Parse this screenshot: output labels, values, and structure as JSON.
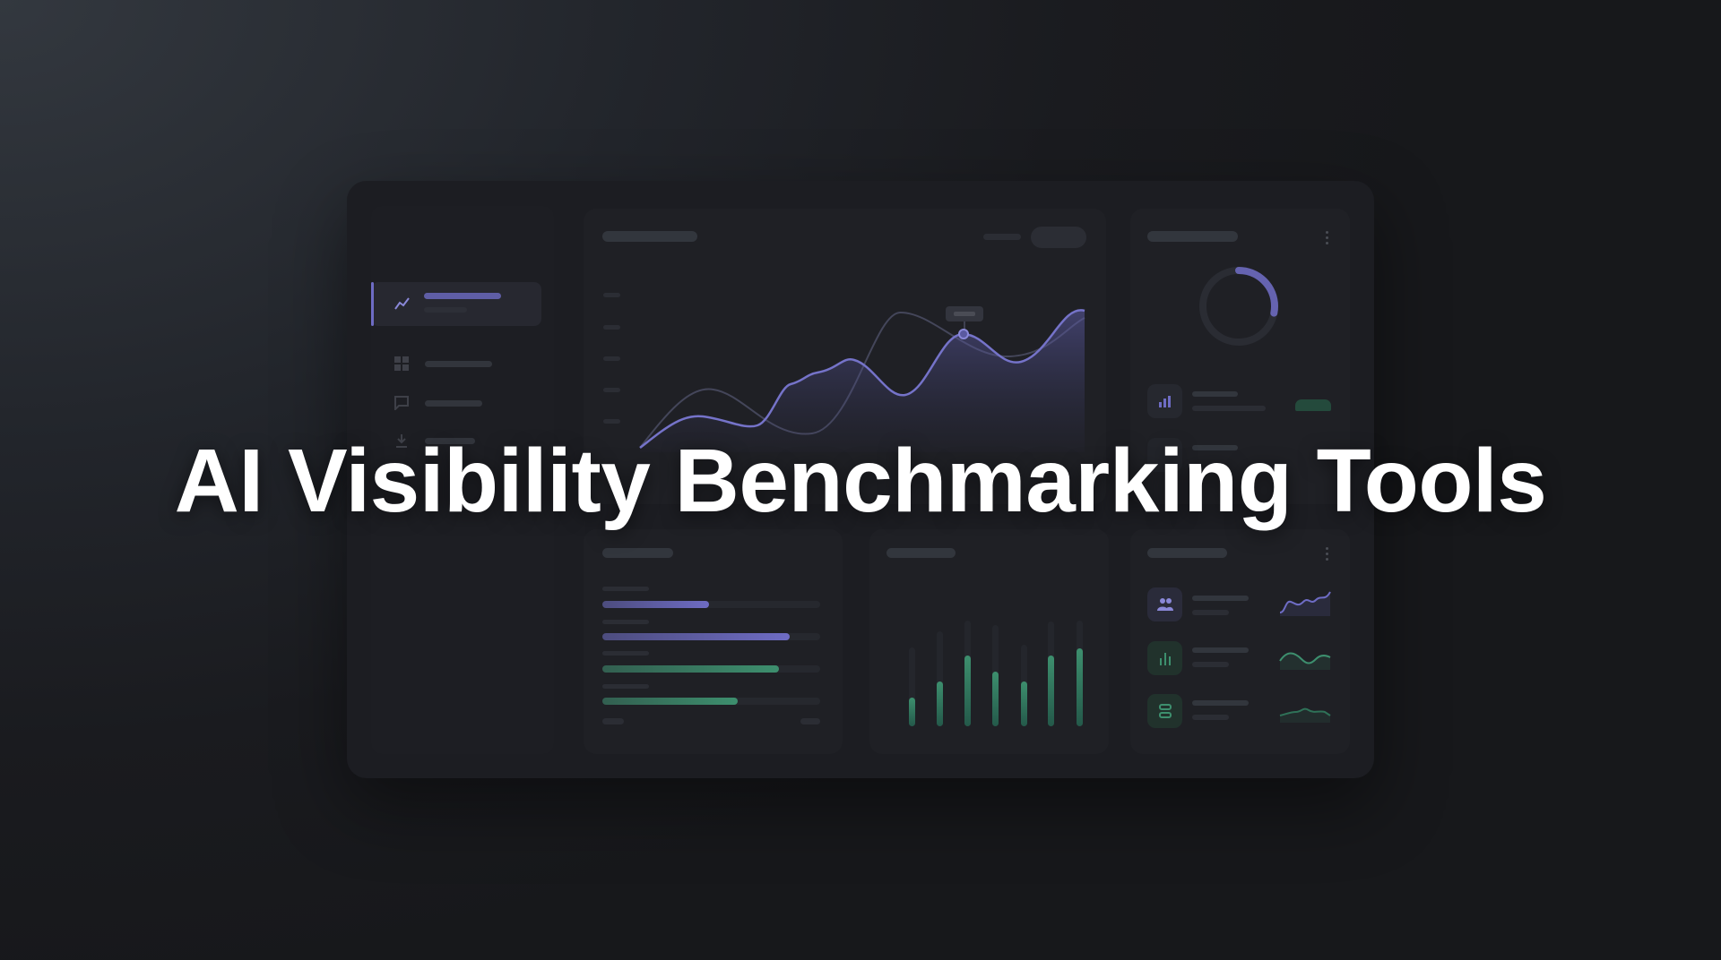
{
  "hero": {
    "title": "AI Visibility Benchmarking Tools"
  },
  "colors": {
    "accent_purple": "#6e6cc4",
    "accent_green": "#3d8f6e",
    "background": "#1a1b1f"
  },
  "sidebar": {
    "items": [
      {
        "icon": "line-chart-icon",
        "active": true
      },
      {
        "icon": "grid-icon",
        "active": false
      },
      {
        "icon": "chat-icon",
        "active": false
      },
      {
        "icon": "download-icon",
        "active": false
      }
    ]
  },
  "donut": {
    "fill_fraction": 0.28
  },
  "progress_bars": [
    {
      "fraction": 0.49,
      "color": "#6e6cc4"
    },
    {
      "fraction": 0.86,
      "color": "#6e6cc4"
    },
    {
      "fraction": 0.81,
      "color": "#3d8f6e"
    },
    {
      "fraction": 0.62,
      "color": "#3d8f6e"
    }
  ],
  "vertical_bars": [
    {
      "track": 0.75,
      "fill": 0.27
    },
    {
      "track": 0.9,
      "fill": 0.42
    },
    {
      "track": 1.0,
      "fill": 0.67
    },
    {
      "track": 0.96,
      "fill": 0.52
    },
    {
      "track": 0.77,
      "fill": 0.42
    },
    {
      "track": 0.99,
      "fill": 0.67
    },
    {
      "track": 1.0,
      "fill": 0.74
    }
  ],
  "stat_rows": [
    {
      "icon": "users-icon",
      "color": "#6e6cc4"
    },
    {
      "icon": "bar-chart-icon",
      "color": "#3d8f6e"
    },
    {
      "icon": "server-icon",
      "color": "#3d8f6e"
    }
  ]
}
